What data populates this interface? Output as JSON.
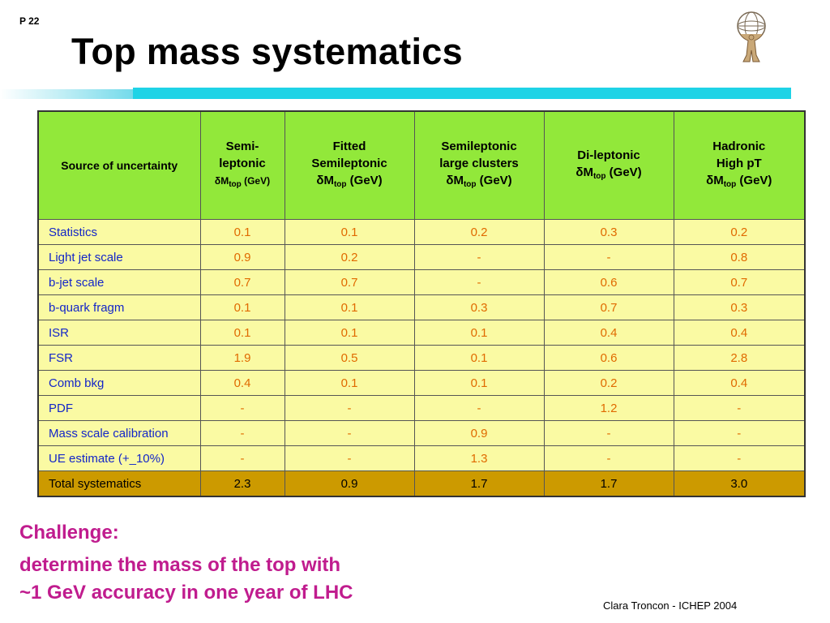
{
  "slide": {
    "page_number": "P 22",
    "title": "Top mass systematics",
    "credit": "Clara Troncon - ICHEP 2004"
  },
  "colors": {
    "header_fill": "#92e83a",
    "row_fill": "#fafaa3",
    "total_fill": "#cc9a00",
    "label_text": "#1426c8",
    "value_text": "#e06a00",
    "challenge_text": "#c01c8e",
    "accent_bar": "#1fd3e6"
  },
  "table": {
    "headers": {
      "source": "Source of uncertainty",
      "semi_line1": "Semi-",
      "semi_line2": "leptonic",
      "fitted_line1": "Fitted",
      "fitted_line2": "Semileptonic",
      "large_line1": "Semileptonic",
      "large_line2": "large clusters",
      "dilep_line1": "Di-leptonic",
      "hadronic_line1": "Hadronic",
      "hadronic_line2": "High pT",
      "delta": "δ",
      "m": "M",
      "sub": "top",
      "unit": "(GeV)"
    },
    "rows": [
      {
        "label": "Statistics",
        "values": [
          "0.1",
          "0.1",
          "0.2",
          "0.3",
          "0.2"
        ]
      },
      {
        "label": "Light jet scale",
        "values": [
          "0.9",
          "0.2",
          "-",
          "-",
          "0.8"
        ]
      },
      {
        "label": "b-jet scale",
        "values": [
          "0.7",
          "0.7",
          "-",
          "0.6",
          "0.7"
        ]
      },
      {
        "label": "b-quark fragm",
        "values": [
          "0.1",
          "0.1",
          "0.3",
          "0.7",
          "0.3"
        ]
      },
      {
        "label": "ISR",
        "values": [
          "0.1",
          "0.1",
          "0.1",
          "0.4",
          "0.4"
        ]
      },
      {
        "label": "FSR",
        "values": [
          "1.9",
          "0.5",
          "0.1",
          "0.6",
          "2.8"
        ]
      },
      {
        "label": "Comb bkg",
        "values": [
          "0.4",
          "0.1",
          "0.1",
          "0.2",
          "0.4"
        ]
      },
      {
        "label": "PDF",
        "values": [
          "-",
          "-",
          "-",
          "1.2",
          "-"
        ]
      },
      {
        "label": "Mass scale calibration",
        "values": [
          "-",
          "-",
          "0.9",
          "-",
          "-"
        ]
      },
      {
        "label": "UE estimate (+_10%)",
        "values": [
          "-",
          "-",
          "1.3",
          "-",
          "-"
        ]
      },
      {
        "label": "Total systematics",
        "values": [
          "2.3",
          "0.9",
          "1.7",
          "1.7",
          "3.0"
        ]
      }
    ]
  },
  "challenge": {
    "heading": "Challenge:",
    "line1": "determine the mass of the top with",
    "line2": "~1 GeV accuracy in one year of LHC"
  }
}
